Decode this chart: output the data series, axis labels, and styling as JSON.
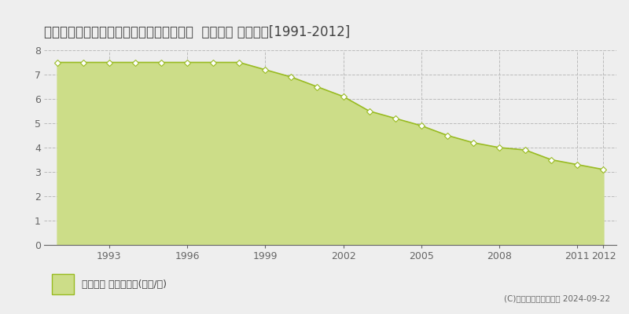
{
  "title": "北海道室蘭市みゆき町２丁目２４５番９３  公示地価 地価推移[1991-2012]",
  "years": [
    1991,
    1992,
    1993,
    1994,
    1995,
    1996,
    1997,
    1998,
    1999,
    2000,
    2001,
    2002,
    2003,
    2004,
    2005,
    2006,
    2007,
    2008,
    2009,
    2010,
    2011,
    2012
  ],
  "values": [
    7.5,
    7.5,
    7.5,
    7.5,
    7.5,
    7.5,
    7.5,
    7.5,
    7.2,
    6.9,
    6.5,
    6.1,
    5.5,
    5.2,
    4.9,
    4.5,
    4.2,
    4.0,
    3.9,
    3.5,
    3.3,
    3.1
  ],
  "line_color": "#99bb22",
  "fill_color": "#ccdd88",
  "marker_facecolor": "#ffffff",
  "marker_edgecolor": "#99bb22",
  "bg_color": "#eeeeee",
  "plot_bg_color": "#eeeeee",
  "grid_color": "#bbbbbb",
  "title_fontsize": 12,
  "tick_fontsize": 9,
  "ylim": [
    0,
    8
  ],
  "yticks": [
    0,
    1,
    2,
    3,
    4,
    5,
    6,
    7,
    8
  ],
  "xtick_years": [
    1993,
    1996,
    1999,
    2002,
    2005,
    2008,
    2011,
    2012
  ],
  "legend_label": "公示地価 平均坪単価(万円/坪)",
  "copyright_text": "(C)土地価格ドットコム 2024-09-22",
  "legend_marker_color": "#ccdd88",
  "legend_marker_edge_color": "#99bb22",
  "axis_color": "#666666",
  "text_color": "#444444"
}
